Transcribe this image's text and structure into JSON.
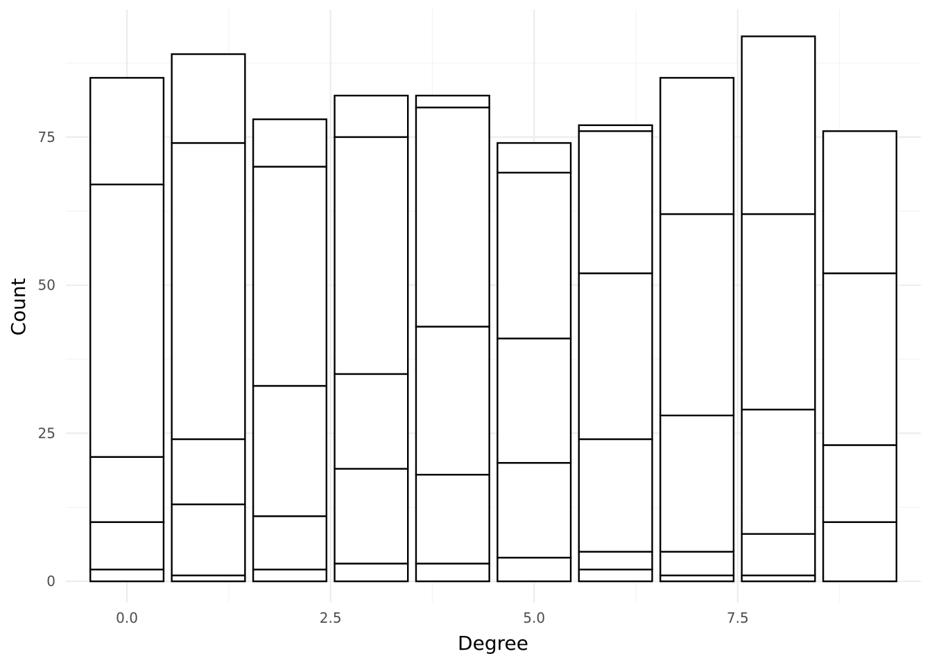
{
  "chart_data": {
    "type": "bar",
    "stacked": true,
    "xlabel": "Degree",
    "ylabel": "Count",
    "x": [
      0,
      1,
      2,
      3,
      4,
      5,
      6,
      7,
      8,
      9
    ],
    "xlim": [
      -0.75,
      9.75
    ],
    "ylim": [
      -3.6,
      96.5
    ],
    "x_ticks": [
      0,
      2.5,
      5,
      7.5
    ],
    "x_tick_labels": [
      "0.0",
      "2.5",
      "5.0",
      "7.5"
    ],
    "y_ticks": [
      0,
      25,
      50,
      75
    ],
    "y_tick_labels": [
      "0",
      "25",
      "50",
      "75"
    ],
    "grid": true,
    "legend": "none",
    "bar_width": 0.9,
    "stack_boundaries": [
      [
        0,
        2,
        10,
        21,
        67,
        85
      ],
      [
        0,
        1,
        13,
        24,
        74,
        89
      ],
      [
        0,
        2,
        11,
        33,
        70,
        78
      ],
      [
        0,
        3,
        19,
        35,
        75,
        82
      ],
      [
        0,
        3,
        18,
        43,
        80,
        82
      ],
      [
        0,
        4,
        20,
        41,
        69,
        74
      ],
      [
        0,
        2,
        5,
        24,
        52,
        76,
        77
      ],
      [
        0,
        1,
        5,
        28,
        62,
        85
      ],
      [
        0,
        1,
        8,
        29,
        62,
        92
      ],
      [
        0,
        10,
        23,
        52,
        76
      ]
    ]
  }
}
